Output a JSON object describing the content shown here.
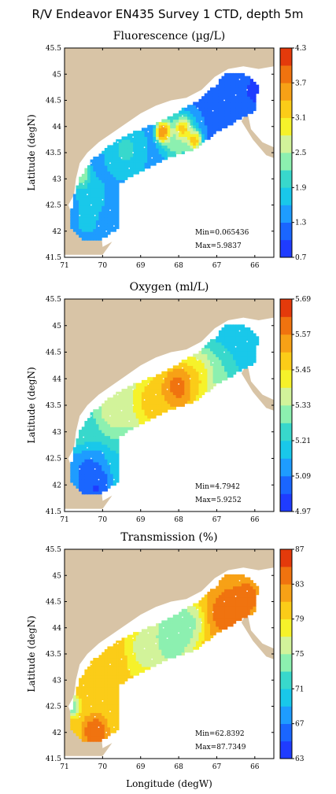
{
  "figure_title": "R/V Endeavor EN435 Survey 1 CTD, depth 5m",
  "colors": {
    "land": "#d8c4a6",
    "coast_white": "#ffffff",
    "station_dot": "#ffffff"
  },
  "chart_data": [
    {
      "type": "heatmap",
      "title": "Fluorescence (µg/L)",
      "ylabel": "Latitude (degN)",
      "xlabel": "",
      "xlim": [
        71,
        65.5
      ],
      "ylim": [
        41.5,
        45.5
      ],
      "xticks": [
        "71",
        "70",
        "69",
        "68",
        "67",
        "66"
      ],
      "yticks": [
        "41.5",
        "42",
        "42.5",
        "43",
        "43.5",
        "44",
        "44.5",
        "45",
        "45.5"
      ],
      "colorbar": {
        "ticks": [
          "4.3",
          "3.7",
          "3.1",
          "2.5",
          "1.9",
          "1.3",
          "0.7"
        ],
        "colors": [
          "#1f3cff",
          "#1a66ff",
          "#1e9cff",
          "#19c8ea",
          "#38d8cc",
          "#8cf0b0",
          "#d2f39a",
          "#f6f22a",
          "#fbcc18",
          "#f7a116",
          "#f0730f",
          "#e43a0b"
        ]
      },
      "min_text": "Min=0.065436",
      "max_text": "Max=5.9837",
      "base_value": 1.25,
      "blobs": [
        {
          "lon": 68.4,
          "lat": 43.9,
          "value": 4.5,
          "r": 0.15
        },
        {
          "lon": 67.9,
          "lat": 43.95,
          "value": 4.2,
          "r": 0.14
        },
        {
          "lon": 67.6,
          "lat": 43.75,
          "value": 3.9,
          "r": 0.14
        },
        {
          "lon": 68.0,
          "lat": 43.8,
          "value": 2.7,
          "r": 0.35
        },
        {
          "lon": 69.4,
          "lat": 43.55,
          "value": 2.1,
          "r": 0.45
        },
        {
          "lon": 70.6,
          "lat": 43.1,
          "value": 2.9,
          "r": 0.2
        },
        {
          "lon": 70.3,
          "lat": 42.7,
          "value": 2.0,
          "r": 0.3
        },
        {
          "lon": 70.4,
          "lat": 42.2,
          "value": 1.8,
          "r": 0.25
        },
        {
          "lon": 69.8,
          "lat": 42.0,
          "value": 1.6,
          "r": 0.3
        },
        {
          "lon": 66.5,
          "lat": 44.5,
          "value": 1.0,
          "r": 0.4
        },
        {
          "lon": 66.0,
          "lat": 44.7,
          "value": 0.9,
          "r": 0.3
        }
      ]
    },
    {
      "type": "heatmap",
      "title": "Oxygen (ml/L)",
      "ylabel": "Latitude (degN)",
      "xlabel": "",
      "xlim": [
        71,
        65.5
      ],
      "ylim": [
        41.5,
        45.5
      ],
      "xticks": [
        "71",
        "70",
        "69",
        "68",
        "67",
        "66"
      ],
      "yticks": [
        "41.5",
        "42",
        "42.5",
        "43",
        "43.5",
        "44",
        "44.5",
        "45",
        "45.5"
      ],
      "colorbar": {
        "ticks": [
          "5.69",
          "5.57",
          "5.45",
          "5.33",
          "5.21",
          "5.09",
          "4.97"
        ],
        "colors": [
          "#1f3cff",
          "#1a66ff",
          "#1e9cff",
          "#19c8ea",
          "#38d8cc",
          "#8cf0b0",
          "#d2f39a",
          "#f6f22a",
          "#fbcc18",
          "#f7a116",
          "#f0730f",
          "#e43a0b"
        ]
      },
      "min_text": "Min=4.7942",
      "max_text": "Max=5.9252",
      "base_value": 5.2,
      "blobs": [
        {
          "lon": 68.0,
          "lat": 43.85,
          "value": 5.72,
          "r": 0.35
        },
        {
          "lon": 68.6,
          "lat": 43.6,
          "value": 5.55,
          "r": 0.55
        },
        {
          "lon": 67.5,
          "lat": 44.0,
          "value": 5.5,
          "r": 0.4
        },
        {
          "lon": 69.7,
          "lat": 43.45,
          "value": 5.4,
          "r": 0.4
        },
        {
          "lon": 70.5,
          "lat": 43.0,
          "value": 5.25,
          "r": 0.3
        },
        {
          "lon": 70.4,
          "lat": 42.3,
          "value": 5.05,
          "r": 0.35
        },
        {
          "lon": 70.2,
          "lat": 41.95,
          "value": 4.98,
          "r": 0.3
        },
        {
          "lon": 66.3,
          "lat": 44.6,
          "value": 5.2,
          "r": 0.5
        },
        {
          "lon": 66.9,
          "lat": 44.1,
          "value": 5.3,
          "r": 0.3
        }
      ]
    },
    {
      "type": "heatmap",
      "title": "Transmission (%)",
      "ylabel": "Latitude (degN)",
      "xlabel": "Longitude (degW)",
      "xlim": [
        71,
        65.5
      ],
      "ylim": [
        41.5,
        45.5
      ],
      "xticks": [
        "71",
        "70",
        "69",
        "68",
        "67",
        "66"
      ],
      "yticks": [
        "41.5",
        "42",
        "42.5",
        "43",
        "43.5",
        "44",
        "44.5",
        "45",
        "45.5"
      ],
      "colorbar": {
        "ticks": [
          "87",
          "83",
          "79",
          "75",
          "71",
          "67",
          "63"
        ],
        "colors": [
          "#1f3cff",
          "#1a66ff",
          "#1e9cff",
          "#19c8ea",
          "#38d8cc",
          "#8cf0b0",
          "#d2f39a",
          "#f6f22a",
          "#fbcc18",
          "#f7a116",
          "#f0730f",
          "#e43a0b"
        ]
      },
      "min_text": "Min=62.8392",
      "max_text": "Max=87.7349",
      "base_value": 80.5,
      "blobs": [
        {
          "lon": 68.2,
          "lat": 43.8,
          "value": 72.0,
          "r": 0.45
        },
        {
          "lon": 68.9,
          "lat": 43.6,
          "value": 75.5,
          "r": 0.4
        },
        {
          "lon": 67.8,
          "lat": 44.1,
          "value": 73.0,
          "r": 0.3
        },
        {
          "lon": 66.7,
          "lat": 44.3,
          "value": 85.5,
          "r": 0.35
        },
        {
          "lon": 66.2,
          "lat": 44.6,
          "value": 84.0,
          "r": 0.35
        },
        {
          "lon": 70.2,
          "lat": 42.0,
          "value": 86.0,
          "r": 0.2
        },
        {
          "lon": 70.8,
          "lat": 42.5,
          "value": 72.0,
          "r": 0.15
        },
        {
          "lon": 69.7,
          "lat": 43.4,
          "value": 80.0,
          "r": 0.3
        }
      ]
    }
  ]
}
